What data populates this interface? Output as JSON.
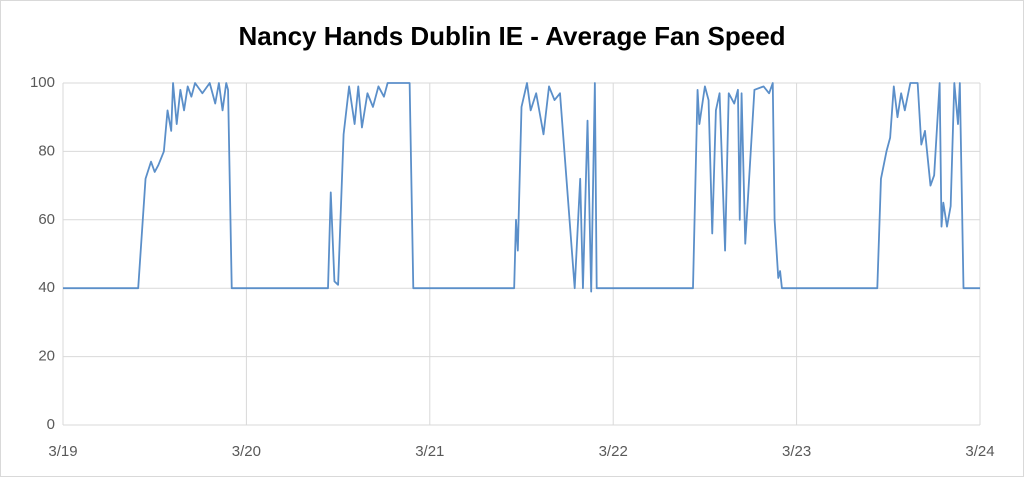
{
  "chart_data": {
    "type": "line",
    "title": "Nancy Hands Dublin IE - Average Fan Speed",
    "x": [
      0,
      0.41,
      0.45,
      0.48,
      0.5,
      0.52,
      0.55,
      0.57,
      0.59,
      0.6,
      0.62,
      0.64,
      0.66,
      0.68,
      0.7,
      0.72,
      0.76,
      0.8,
      0.83,
      0.85,
      0.87,
      0.89,
      0.9,
      0.92,
      1.445,
      1.46,
      1.48,
      1.5,
      1.53,
      1.56,
      1.59,
      1.61,
      1.63,
      1.66,
      1.69,
      1.72,
      1.75,
      1.77,
      1.89,
      1.91,
      2.46,
      2.47,
      2.48,
      2.5,
      2.53,
      2.55,
      2.58,
      2.62,
      2.65,
      2.68,
      2.71,
      2.79,
      2.82,
      2.835,
      2.86,
      2.88,
      2.9,
      2.91,
      3.435,
      3.46,
      3.47,
      3.5,
      3.52,
      3.54,
      3.56,
      3.58,
      3.61,
      3.63,
      3.66,
      3.68,
      3.69,
      3.7,
      3.72,
      3.77,
      3.82,
      3.85,
      3.87,
      3.88,
      3.9,
      3.91,
      3.92,
      4.44,
      4.46,
      4.49,
      4.51,
      4.53,
      4.55,
      4.57,
      4.59,
      4.62,
      4.66,
      4.68,
      4.7,
      4.73,
      4.75,
      4.78,
      4.79,
      4.8,
      4.82,
      4.84,
      4.86,
      4.88,
      4.89,
      4.91,
      5
    ],
    "series": [
      {
        "name": "Average Fan Speed",
        "color": "#5b8fc9",
        "values": [
          40,
          40,
          72,
          77,
          74,
          76,
          80,
          92,
          86,
          100,
          88,
          98,
          92,
          99,
          96,
          100,
          97,
          100,
          94,
          100,
          92,
          100,
          98,
          40,
          40,
          68,
          42,
          41,
          85,
          99,
          88,
          99,
          87,
          97,
          93,
          99,
          96,
          100,
          100,
          40,
          40,
          60,
          51,
          93,
          100,
          92,
          97,
          85,
          99,
          95,
          97,
          40,
          72,
          40,
          89,
          39,
          100,
          40,
          40,
          98,
          88,
          99,
          95,
          56,
          92,
          97,
          51,
          97,
          94,
          98,
          60,
          97,
          53,
          98,
          99,
          97,
          100,
          60,
          43,
          45,
          40,
          40,
          72,
          80,
          84,
          99,
          90,
          97,
          92,
          100,
          100,
          82,
          86,
          70,
          73,
          100,
          58,
          65,
          58,
          64,
          100,
          88,
          100,
          40,
          40
        ]
      }
    ],
    "xlim": [
      0,
      5
    ],
    "xticks": [
      {
        "value": 0,
        "label": "3/19"
      },
      {
        "value": 1,
        "label": "3/20"
      },
      {
        "value": 2,
        "label": "3/21"
      },
      {
        "value": 3,
        "label": "3/22"
      },
      {
        "value": 4,
        "label": "3/23"
      },
      {
        "value": 5,
        "label": "3/24"
      }
    ],
    "ylim": [
      0,
      100
    ],
    "yticks": [
      0,
      20,
      40,
      60,
      80,
      100
    ],
    "grid": true
  }
}
